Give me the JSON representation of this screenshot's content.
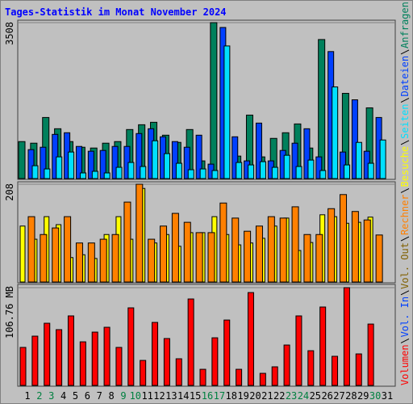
{
  "chart_data": {
    "type": "bar",
    "title": "Tages-Statistik im Monat November 2024",
    "categories": [
      "1",
      "2",
      "3",
      "4",
      "5",
      "6",
      "7",
      "8",
      "9",
      "10",
      "11",
      "12",
      "13",
      "14",
      "15",
      "16",
      "17",
      "18",
      "19",
      "20",
      "21",
      "22",
      "23",
      "24",
      "25",
      "26",
      "27",
      "28",
      "29",
      "30",
      "31"
    ],
    "category_colors": [
      "#000000",
      "#008040",
      "#008040",
      "#000000",
      "#000000",
      "#000000",
      "#000000",
      "#000000",
      "#008040",
      "#008040",
      "#000000",
      "#000000",
      "#000000",
      "#000000",
      "#000000",
      "#008040",
      "#008040",
      "#000000",
      "#000000",
      "#000000",
      "#000000",
      "#000000",
      "#008040",
      "#008040",
      "#000000",
      "#000000",
      "#000000",
      "#000000",
      "#000000",
      "#008040",
      "#000000"
    ],
    "grid": true,
    "panels": [
      {
        "ylim": [
          0,
          3508
        ],
        "yticks": [
          3508
        ],
        "series": [
          {
            "name": "Anfragen",
            "color": "#00805c",
            "values": [
              832,
              796,
              1374,
              1121,
              832,
              705,
              687,
              796,
              832,
              1103,
              1211,
              1266,
              976,
              814,
              1103,
              398,
              3508,
              1067,
              506,
              1428,
              488,
              904,
              1031,
              1229,
              687,
              3128,
              723,
              1917,
              705,
              1591,
              null
            ]
          },
          {
            "name": "Dateien",
            "color": "#0040ff",
            "values": [
              651,
              705,
              994,
              1031,
              723,
              615,
              633,
              723,
              723,
              1013,
              1121,
              940,
              832,
              705,
              976,
              325,
              3399,
              940,
              398,
              1248,
              398,
              633,
              796,
              1121,
              488,
              2857,
              597,
              1772,
              615,
              1374,
              null
            ]
          },
          {
            "name": "Seiten",
            "color": "#00e0ff",
            "values": [
              289,
              217,
              488,
              597,
              127,
              163,
              127,
              253,
              362,
              271,
              850,
              561,
              344,
              199,
              217,
              181,
              2983,
              362,
              307,
              380,
              253,
              524,
              271,
              416,
              181,
              2061,
              307,
              814,
              344,
              868,
              null
            ]
          }
        ]
      },
      {
        "ylim": [
          0,
          208
        ],
        "yticks": [
          208
        ],
        "series": [
          {
            "name": "Besuche",
            "color": "#ffff00",
            "values": [
              119,
              91,
              139,
              122,
              52,
              58,
              50,
              101,
              139,
              91,
              199,
              83,
              101,
              76,
              105,
              105,
              139,
              101,
              79,
              83,
              93,
              119,
              136,
              67,
              84,
              143,
              139,
              125,
              127,
              138,
              null
            ]
          },
          {
            "name": "Rechner",
            "color": "#ff8000",
            "values": [
              139,
              101,
              115,
              139,
              83,
              83,
              91,
              101,
              170,
              208,
              91,
              119,
              146,
              127,
              105,
              105,
              168,
              136,
              108,
              119,
              139,
              136,
              160,
              101,
              101,
              156,
              186,
              150,
              132,
              100,
              null
            ]
          }
        ]
      },
      {
        "ylim": [
          0,
          106.76
        ],
        "yticks": [
          {
            "value": 106.76,
            "label": "106.76 MB"
          }
        ],
        "series": [
          {
            "name": "Volumen",
            "color": "#ff0000",
            "values": [
              41.5,
              53.8,
              67.9,
              60.9,
              75.9,
              47.6,
              58.2,
              63.5,
              41.5,
              84.7,
              27.3,
              68.8,
              51.2,
              29.1,
              94.4,
              17.6,
              52.0,
              71.4,
              17.6,
              101.4,
              13.2,
              20.3,
              44.1,
              75.9,
              37.9,
              85.6,
              31.8,
              106.76,
              34.4,
              67.0,
              null
            ]
          }
        ]
      }
    ],
    "legend_extra": [
      {
        "name": "Vol. In",
        "color": "#0040ff"
      },
      {
        "name": "Vol. Out",
        "color": "#806000"
      }
    ]
  }
}
